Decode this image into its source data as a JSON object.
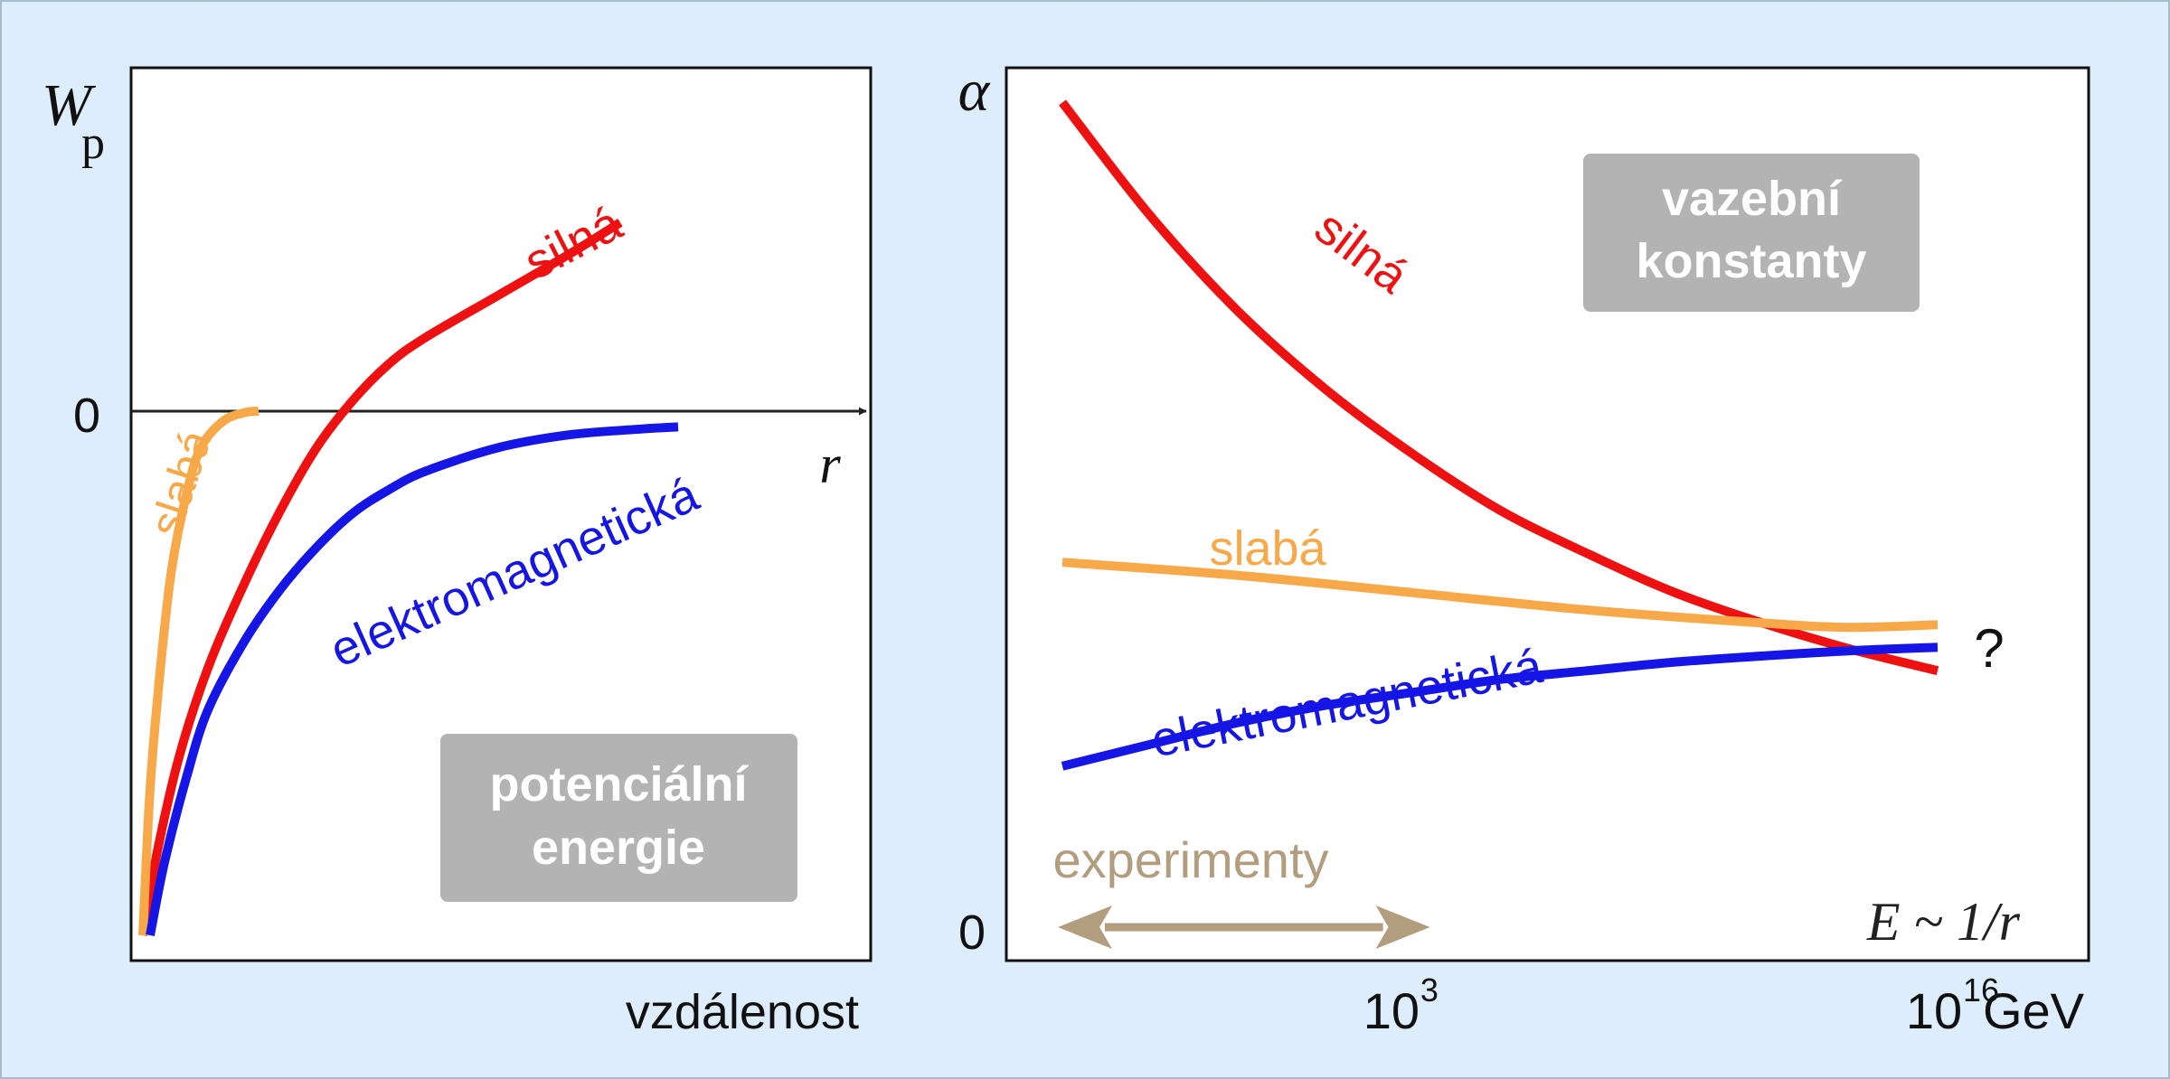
{
  "chart_data": [
    {
      "type": "line",
      "title": "",
      "ylabel_main": "W",
      "ylabel_sub": "p",
      "xlabel": "vzdálenost",
      "axis_var": "r",
      "zero_tick": "0",
      "box_label": [
        "potenciální",
        "energie"
      ],
      "series": [
        {
          "name": "silná",
          "color": "#ee1111",
          "points": [
            [
              0.01,
              -1.0
            ],
            [
              0.03,
              -0.84
            ],
            [
              0.06,
              -0.66
            ],
            [
              0.1,
              -0.49
            ],
            [
              0.15,
              -0.33
            ],
            [
              0.2,
              -0.19
            ],
            [
              0.25,
              -0.07
            ],
            [
              0.3,
              0.02
            ],
            [
              0.35,
              0.09
            ],
            [
              0.4,
              0.14
            ],
            [
              0.5,
              0.22
            ],
            [
              0.6,
              0.3
            ],
            [
              0.67,
              0.36
            ]
          ]
        },
        {
          "name": "slabá",
          "color": "#f7a94a",
          "points": [
            [
              0.01,
              -1.0
            ],
            [
              0.02,
              -0.72
            ],
            [
              0.035,
              -0.48
            ],
            [
              0.05,
              -0.3
            ],
            [
              0.07,
              -0.16
            ],
            [
              0.09,
              -0.07
            ],
            [
              0.12,
              -0.02
            ],
            [
              0.15,
              -0.003
            ],
            [
              0.17,
              0.0
            ]
          ]
        },
        {
          "name": "elektromagnetická",
          "color": "#1515e6",
          "points": [
            [
              0.02,
              -1.0
            ],
            [
              0.04,
              -0.86
            ],
            [
              0.07,
              -0.7
            ],
            [
              0.1,
              -0.57
            ],
            [
              0.15,
              -0.44
            ],
            [
              0.2,
              -0.34
            ],
            [
              0.25,
              -0.26
            ],
            [
              0.3,
              -0.195
            ],
            [
              0.35,
              -0.15
            ],
            [
              0.4,
              -0.115
            ],
            [
              0.5,
              -0.07
            ],
            [
              0.6,
              -0.045
            ],
            [
              0.7,
              -0.034
            ],
            [
              0.75,
              -0.03
            ]
          ]
        }
      ]
    },
    {
      "type": "line",
      "title": "",
      "ylabel": "α",
      "xlabel_unit": "GeV",
      "x_ticks": [
        {
          "value": 0.38,
          "base": "10",
          "exp": "3"
        },
        {
          "value": 1.0,
          "base": "10",
          "exp": "16"
        }
      ],
      "zero_tick": "0",
      "box_label": [
        "vazební",
        "konstanty"
      ],
      "relation_label": "E ~ 1/r",
      "question_mark": "?",
      "experiment_label": "experimenty",
      "experiment_range": [
        0.0,
        0.42
      ],
      "series": [
        {
          "name": "silná",
          "color": "#ee1111",
          "points": [
            [
              0.0,
              0.96
            ],
            [
              0.1,
              0.83
            ],
            [
              0.2,
              0.72
            ],
            [
              0.3,
              0.63
            ],
            [
              0.4,
              0.555
            ],
            [
              0.5,
              0.49
            ],
            [
              0.6,
              0.44
            ],
            [
              0.7,
              0.395
            ],
            [
              0.8,
              0.36
            ],
            [
              0.9,
              0.33
            ],
            [
              1.0,
              0.305
            ]
          ]
        },
        {
          "name": "slabá",
          "color": "#f7a94a",
          "points": [
            [
              0.0,
              0.43
            ],
            [
              0.2,
              0.415
            ],
            [
              0.4,
              0.395
            ],
            [
              0.6,
              0.375
            ],
            [
              0.8,
              0.36
            ],
            [
              0.9,
              0.355
            ],
            [
              1.0,
              0.358
            ]
          ]
        },
        {
          "name": "elektromagnetická",
          "color": "#1515e6",
          "points": [
            [
              0.0,
              0.195
            ],
            [
              0.1,
              0.22
            ],
            [
              0.2,
              0.245
            ],
            [
              0.3,
              0.265
            ],
            [
              0.4,
              0.28
            ],
            [
              0.5,
              0.295
            ],
            [
              0.6,
              0.305
            ],
            [
              0.7,
              0.315
            ],
            [
              0.8,
              0.322
            ],
            [
              0.9,
              0.328
            ],
            [
              1.0,
              0.332
            ]
          ]
        }
      ]
    }
  ]
}
